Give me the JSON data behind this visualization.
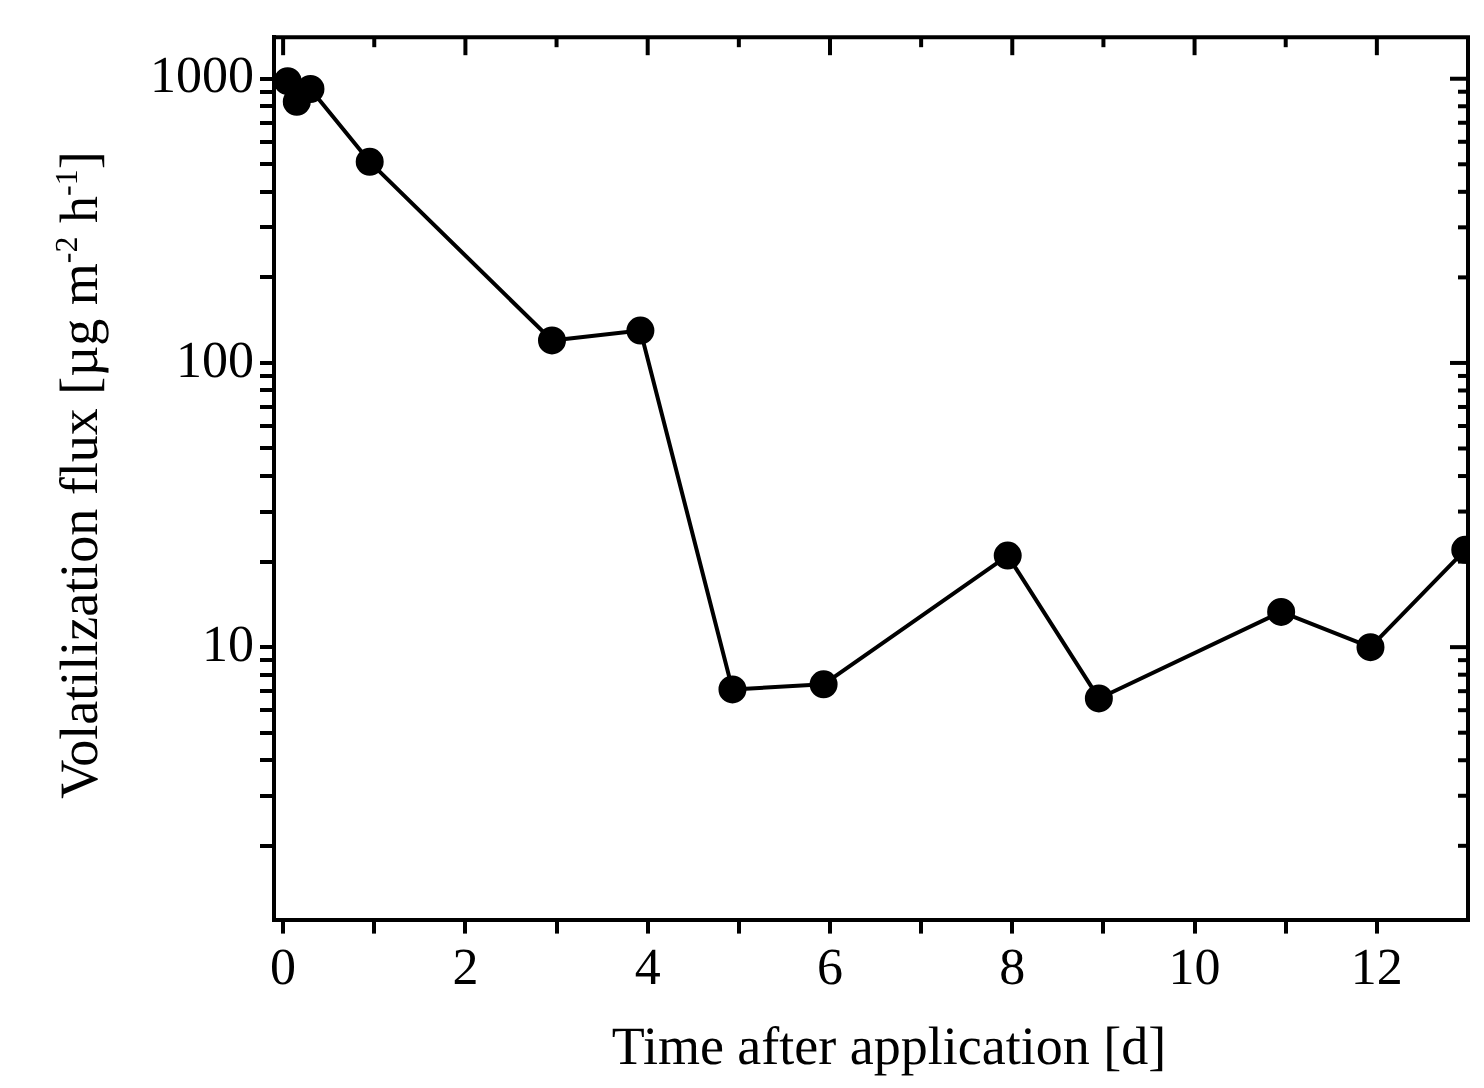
{
  "chart_data": {
    "type": "line",
    "xlabel": "Time after application [d]",
    "ylabel": "Volatilization flux [µg m$^{-2}$ h$^{-1}$]",
    "x": [
      0.05,
      0.15,
      0.3,
      0.95,
      2.95,
      3.92,
      4.93,
      5.93,
      7.95,
      8.95,
      10.95,
      11.93,
      12.97
    ],
    "series": [
      {
        "color": "#000000",
        "values": [
          980,
          830,
          920,
          510,
          120,
          130,
          7.1,
          7.4,
          21,
          6.6,
          13.3,
          10,
          22
        ]
      }
    ],
    "xlim": [
      -0.1,
      13
    ],
    "ylim": [
      1.1,
      1400
    ],
    "log": "y",
    "grid": false,
    "legend": false,
    "marker": "circle",
    "line_style": "solid",
    "xticks": [
      0,
      {
        "value": 1,
        "label": null
      },
      2,
      {
        "value": 3,
        "label": null
      },
      4,
      {
        "value": 5,
        "label": null
      },
      6,
      {
        "value": 7,
        "label": null
      },
      8,
      {
        "value": 9,
        "label": null
      },
      10,
      {
        "value": 11,
        "label": null
      },
      12
    ],
    "yticks": [
      {
        "value": 2,
        "label": null
      },
      {
        "value": 3,
        "label": null
      },
      {
        "value": 4,
        "label": null
      },
      {
        "value": 5,
        "label": null
      },
      {
        "value": 6,
        "label": null
      },
      {
        "value": 7,
        "label": null
      },
      {
        "value": 8,
        "label": null
      },
      {
        "value": 9,
        "label": null
      },
      10,
      {
        "value": 20,
        "label": null
      },
      {
        "value": 30,
        "label": null
      },
      {
        "value": 40,
        "label": null
      },
      {
        "value": 50,
        "label": null
      },
      {
        "value": 60,
        "label": null
      },
      {
        "value": 70,
        "label": null
      },
      {
        "value": 80,
        "label": null
      },
      {
        "value": 90,
        "label": null
      },
      100,
      {
        "value": 200,
        "label": null
      },
      {
        "value": 300,
        "label": null
      },
      {
        "value": 400,
        "label": null
      },
      {
        "value": 500,
        "label": null
      },
      {
        "value": 600,
        "label": null
      },
      {
        "value": 700,
        "label": null
      },
      {
        "value": 800,
        "label": null
      },
      {
        "value": 900,
        "label": null
      },
      1000
    ]
  }
}
